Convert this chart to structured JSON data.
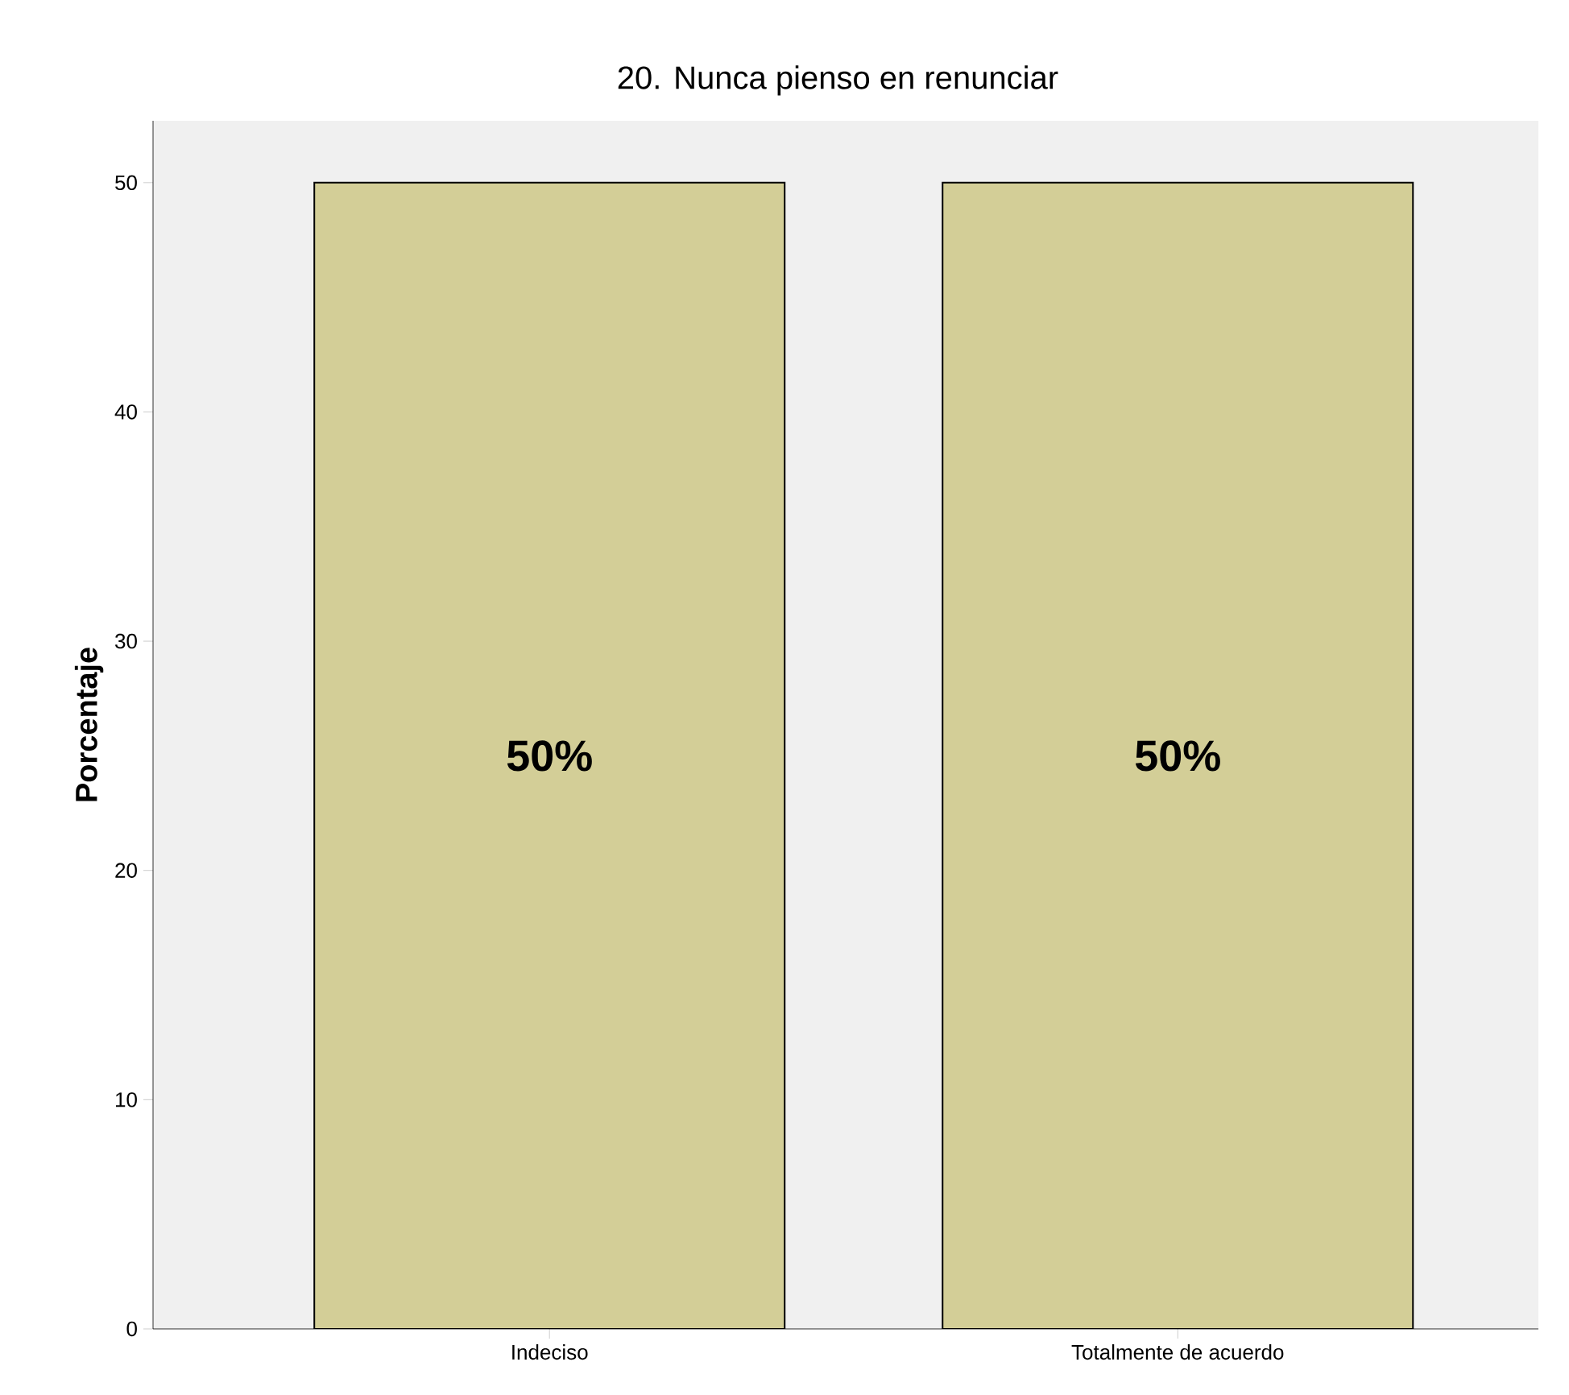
{
  "chart_data": {
    "type": "bar",
    "title": "20. Nunca pienso en renunciar",
    "ylabel": "Porcentaje",
    "categories": [
      "Indeciso",
      "Totalmente de acuerdo"
    ],
    "values": [
      50,
      50
    ],
    "value_labels": [
      "50%",
      "50%"
    ],
    "color": "#d3ce97",
    "ylim": [
      0,
      52.7
    ],
    "yticks": [
      0,
      10,
      20,
      30,
      40,
      50
    ],
    "grid": false
  }
}
